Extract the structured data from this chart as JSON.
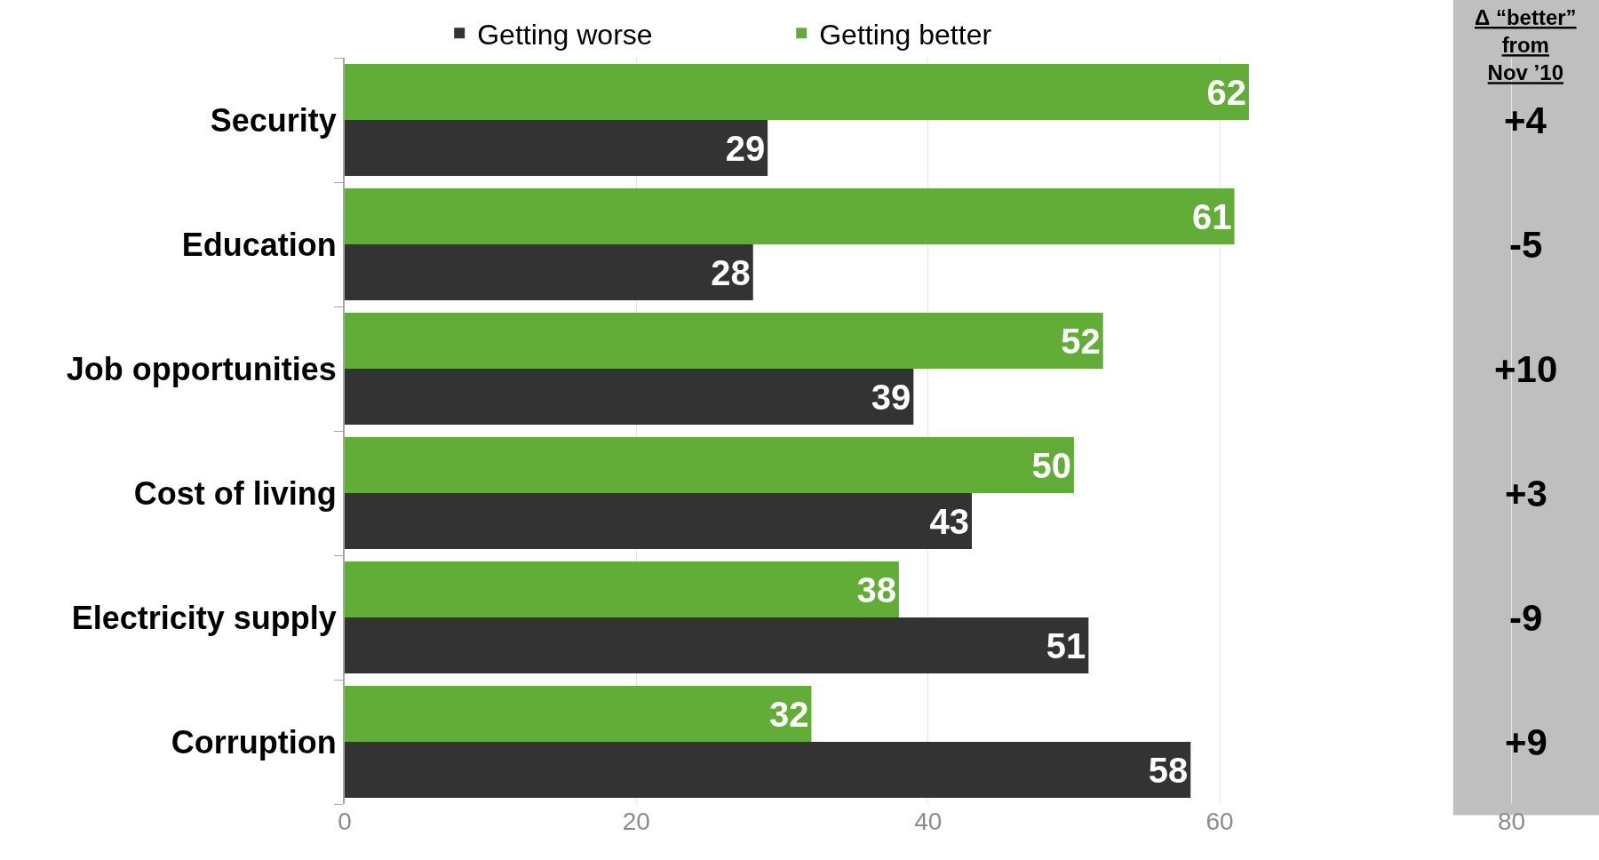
{
  "chart_data": {
    "type": "bar",
    "orientation": "horizontal",
    "categories": [
      "Security",
      "Education",
      "Job opportunities",
      "Cost of living",
      "Electricity supply",
      "Corruption"
    ],
    "series": [
      {
        "name": "Getting better",
        "color": "#62ad37",
        "values": [
          62,
          61,
          52,
          50,
          38,
          32
        ]
      },
      {
        "name": "Getting worse",
        "color": "#333333",
        "values": [
          29,
          28,
          39,
          43,
          51,
          58
        ]
      }
    ],
    "xlim": [
      0,
      86
    ],
    "xticks": [
      0,
      20,
      40,
      60,
      80
    ],
    "grid": "x",
    "legend": "top",
    "data_labels": true,
    "bands": [
      {
        "axis": "x",
        "from": 76,
        "to": 86,
        "color": "#bfbfbf"
      }
    ],
    "annotations": [
      "Δ “better” from Nov ’10",
      "+4",
      "-5",
      "+10",
      "+3",
      "-9",
      "+9"
    ]
  }
}
